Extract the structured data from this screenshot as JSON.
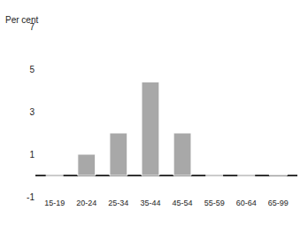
{
  "chart_data": {
    "type": "bar",
    "y_label": "Per cent",
    "categories": [
      "15-19",
      "20-24",
      "25-34",
      "35-44",
      "45-54",
      "55-59",
      "60-64",
      "65-99"
    ],
    "values": [
      0,
      1,
      2,
      4.4,
      2,
      0,
      0,
      0.05
    ],
    "color": "#a8a8a8",
    "ylim": [
      -1,
      7
    ],
    "yticks": [
      -1,
      1,
      3,
      5,
      7
    ],
    "grid": false
  }
}
